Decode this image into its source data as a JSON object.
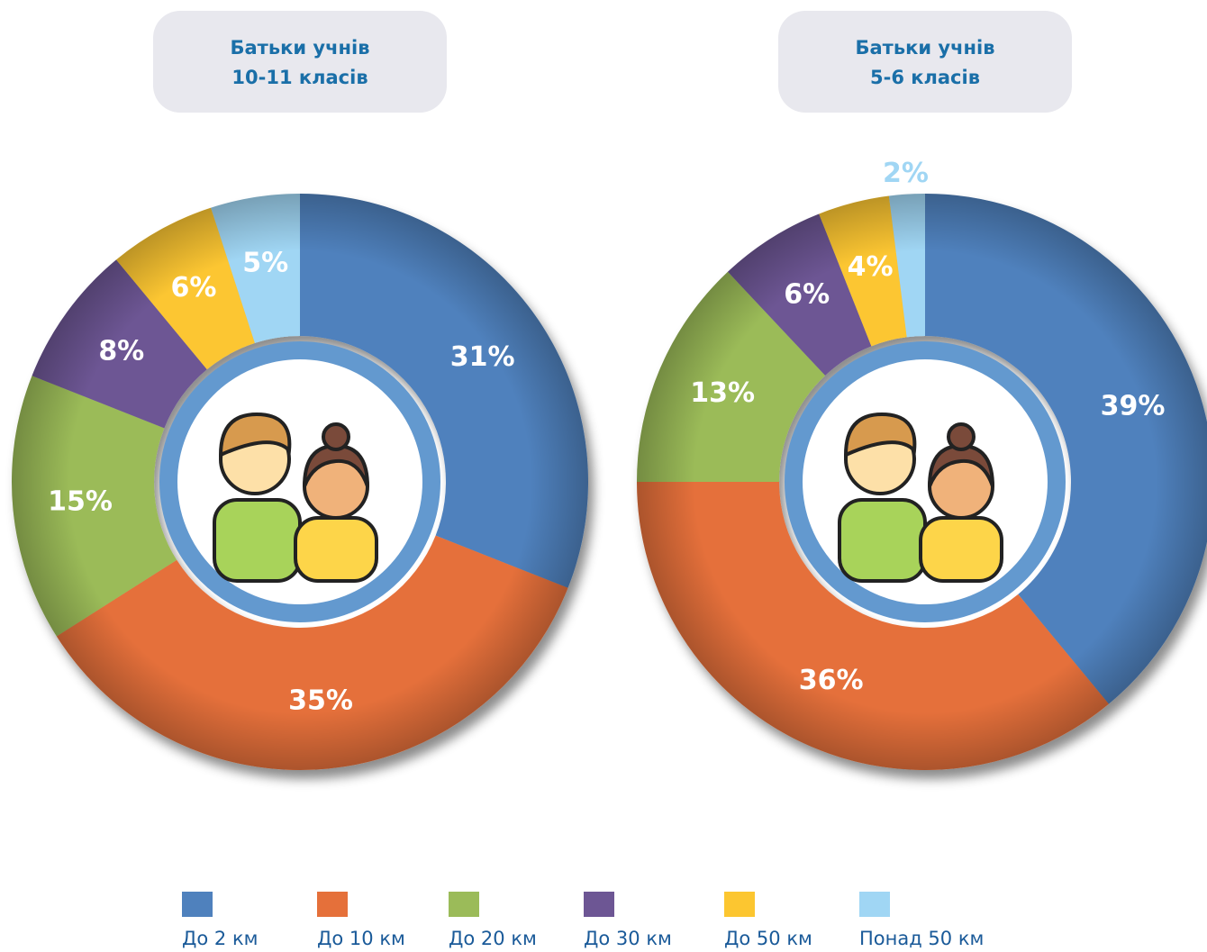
{
  "legend": {
    "categories": [
      "До 2 км",
      "До 10 км",
      "До 20 км",
      "До 30 км",
      "До 50 км",
      "Понад 50 км"
    ],
    "colors": [
      "#4f81bd",
      "#e5703a",
      "#9bbb59",
      "#6d5694",
      "#fcc630",
      "#a0d6f4"
    ]
  },
  "chart_data": [
    {
      "type": "pie",
      "donut": true,
      "title": [
        "Батьки учнів",
        "10-11 класів"
      ],
      "values": [
        31,
        35,
        15,
        8,
        6,
        5
      ],
      "value_labels": [
        "31%",
        "35%",
        "15%",
        "8%",
        "6%",
        "5%"
      ]
    },
    {
      "type": "pie",
      "donut": true,
      "title": [
        "Батьки учнів",
        "5-6 класів"
      ],
      "values": [
        39,
        36,
        13,
        6,
        4,
        2
      ],
      "value_labels": [
        "39%",
        "36%",
        "13%",
        "6%",
        "4%",
        "2%"
      ]
    }
  ]
}
